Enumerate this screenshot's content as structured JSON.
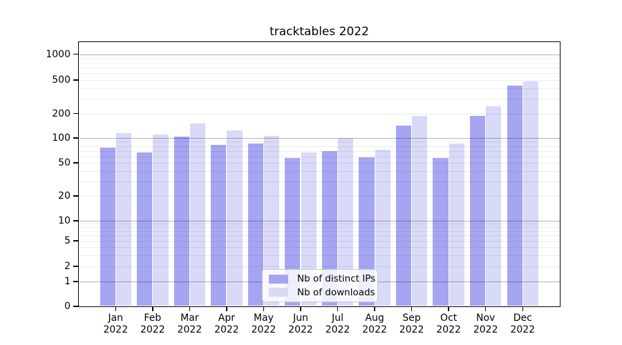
{
  "figure_title": "tracktables 2022",
  "chart_data": {
    "type": "bar",
    "title": "tracktables 2022",
    "categories": [
      "Jan",
      "Feb",
      "Mar",
      "Apr",
      "May",
      "Jun",
      "Jul",
      "Aug",
      "Sep",
      "Oct",
      "Nov",
      "Dec"
    ],
    "xtick_year": "2022",
    "series": [
      {
        "name": "Nb of distinct IPs",
        "color": "#a5a5f2",
        "values": [
          77,
          67,
          104,
          83,
          86,
          57,
          70,
          58,
          143,
          57,
          188,
          432
        ]
      },
      {
        "name": "Nb of downloads",
        "color": "#d9d9f8",
        "values": [
          114,
          110,
          151,
          124,
          106,
          67,
          100,
          72,
          187,
          86,
          245,
          478
        ]
      }
    ],
    "yscale": "symlog",
    "yticks": [
      0,
      1,
      2,
      5,
      10,
      20,
      50,
      100,
      200,
      500,
      1000
    ],
    "ylim": [
      0,
      1380
    ],
    "grid": true,
    "legend_position": "lower center"
  }
}
